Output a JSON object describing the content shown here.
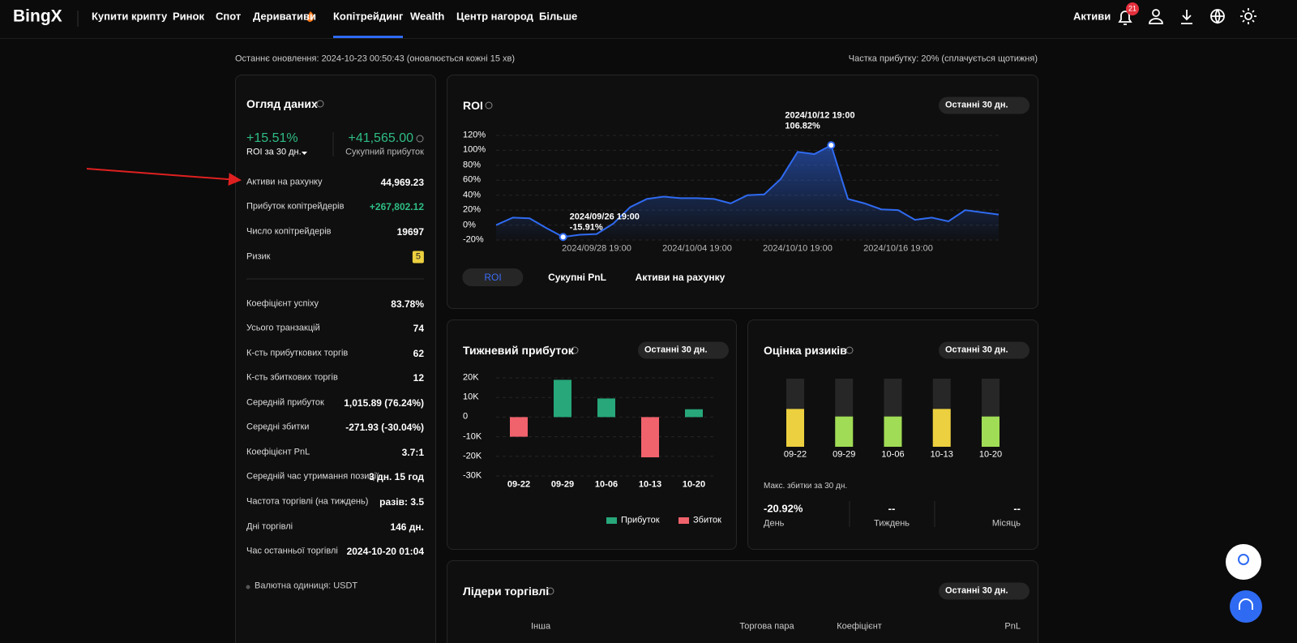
{
  "nav": {
    "logo": "BingX",
    "items": [
      "Купити крипту",
      "Ринок",
      "Спот",
      "Деривативи",
      "Копітрейдинг",
      "Wealth",
      "Центр нагород",
      "Більше"
    ],
    "active": 4,
    "assets": "Активи",
    "badge": "21"
  },
  "header": {
    "updated": "Останнє оновлення: 2024-10-23 00:50:43 (оновлюється кожні 15 хв)",
    "profit_share": "Частка прибутку: 20% (сплачується щотижня)"
  },
  "overview": {
    "title": "Огляд даних",
    "roi": "+15.51%",
    "roi_label": "ROI за 30 дн.",
    "pnl": "+41,565.00",
    "pnl_label": "Сукупний прибуток",
    "rows": [
      {
        "label": "Активи на рахунку",
        "value": "44,969.23"
      },
      {
        "label": "Прибуток копітрейдерів",
        "value": "+267,802.12"
      },
      {
        "label": "Число копітрейдерів",
        "value": "19697"
      },
      {
        "label": "Ризик",
        "value": "5"
      }
    ],
    "rows2": [
      {
        "label": "Коефіцієнт успіху",
        "value": "83.78%"
      },
      {
        "label": "Усього транзакцій",
        "value": "74"
      },
      {
        "label": "К-сть прибуткових торгів",
        "value": "62"
      },
      {
        "label": "К-сть збиткових торгів",
        "value": "12"
      },
      {
        "label": "Середній прибуток",
        "value": "1,015.89 (76.24%)"
      },
      {
        "label": "Середні збитки",
        "value": "-271.93 (-30.04%)"
      },
      {
        "label": "Коефіцієнт PnL",
        "value": "3.7:1"
      },
      {
        "label": "Середній час утримання позиції",
        "value": "3 дн. 15 год"
      },
      {
        "label": "Частота торгівлі (на тиждень)",
        "value": "разів: 3.5"
      },
      {
        "label": "Дні торгівлі",
        "value": "146 дн."
      },
      {
        "label": "Час останньої торгівлі",
        "value": "2024-10-20 01:04"
      }
    ],
    "currency": "Валютна одиниця: USDT"
  },
  "roi_chart": {
    "type": "line",
    "title": "ROI",
    "period": "Останні 30 дн.",
    "color": "#2f6bf2",
    "x": [
      "2024/09/22 19:00",
      "2024/09/23 19:00",
      "2024/09/24 19:00",
      "2024/09/25 19:00",
      "2024/09/26 19:00",
      "2024/09/27 19:00",
      "2024/09/28 19:00",
      "2024/09/29 19:00",
      "2024/09/30 19:00",
      "2024/10/01 19:00",
      "2024/10/02 19:00",
      "2024/10/03 19:00",
      "2024/10/04 19:00",
      "2024/10/05 19:00",
      "2024/10/06 19:00",
      "2024/10/07 19:00",
      "2024/10/08 19:00",
      "2024/10/09 19:00",
      "2024/10/10 19:00",
      "2024/10/11 19:00",
      "2024/10/12 19:00",
      "2024/10/13 19:00",
      "2024/10/14 19:00",
      "2024/10/15 19:00",
      "2024/10/16 19:00",
      "2024/10/17 19:00",
      "2024/10/18 19:00",
      "2024/10/19 19:00",
      "2024/10/20 19:00",
      "2024/10/21 19:00",
      "2024/10/22 19:00"
    ],
    "values": [
      0,
      10,
      9,
      -4,
      -15.91,
      -13,
      -12,
      2,
      24,
      35,
      38,
      36,
      36,
      35,
      29,
      40,
      41,
      62,
      98,
      95,
      106.82,
      35,
      29,
      21,
      20,
      7,
      10,
      5,
      20,
      17,
      14
    ],
    "ylim": [
      -20,
      120
    ],
    "yticks": [
      {
        "value": -20,
        "label": "-20%"
      },
      {
        "value": 0,
        "label": "0%"
      },
      {
        "value": 20,
        "label": "20%"
      },
      {
        "value": 40,
        "label": "40%"
      },
      {
        "value": 60,
        "label": "60%"
      },
      {
        "value": 80,
        "label": "80%"
      },
      {
        "value": 100,
        "label": "100%"
      },
      {
        "value": 120,
        "label": "120%"
      }
    ],
    "xticks": [
      "2024/09/28 19:00",
      "2024/10/04 19:00",
      "2024/10/10 19:00",
      "2024/10/16 19:00"
    ],
    "grid": true,
    "annotations": [
      {
        "x": "2024/09/26 19:00",
        "label": "-15.91%"
      },
      {
        "x": "2024/10/12 19:00",
        "label": "106.82%"
      }
    ],
    "tabs": [
      "ROI",
      "Сукупні PnL",
      "Активи на рахунку"
    ]
  },
  "weekly_chart": {
    "type": "bar",
    "title": "Тижневий прибуток",
    "period": "Останні 30 дн.",
    "categories": [
      "09-22",
      "09-29",
      "10-06",
      "10-13",
      "10-20"
    ],
    "values": [
      -10000,
      19000,
      9500,
      -20500,
      4000
    ],
    "ylim": [
      -30000,
      20000
    ],
    "yticks": [
      {
        "value": -30000,
        "label": "-30K"
      },
      {
        "value": -20000,
        "label": "-20K"
      },
      {
        "value": -10000,
        "label": "-10K"
      },
      0,
      {
        "value": 10000,
        "label": "10K"
      },
      {
        "value": 20000,
        "label": "20K"
      }
    ],
    "grid": true,
    "legend": [
      {
        "name": "Прибуток",
        "color": "#27a77a"
      },
      {
        "name": "Збиток",
        "color": "#f0626c"
      }
    ]
  },
  "risk_chart": {
    "type": "bar",
    "title": "Оцінка ризиків",
    "period": "Останні 30 дн.",
    "categories": [
      "09-22",
      "09-29",
      "10-06",
      "10-13",
      "10-20"
    ],
    "values": [
      5,
      4,
      4,
      5,
      4
    ],
    "ylim": [
      0,
      9
    ],
    "colors": [
      "#ecd03f",
      "#a0dc55",
      "#a0dc55",
      "#ecd03f",
      "#a0dc55"
    ],
    "max_loss_title": "Макс. збитки за 30 дн.",
    "stats": [
      {
        "value": "-20.92%",
        "label": "День"
      },
      {
        "value": "--",
        "label": "Тиждень"
      },
      {
        "value": "--",
        "label": "Місяць"
      }
    ]
  },
  "leaders": {
    "title": "Лідери торгівлі",
    "period": "Останні 30 дн.",
    "columns": [
      "Інша",
      "Торгова пара",
      "Коефіцієнт",
      "PnL"
    ]
  }
}
